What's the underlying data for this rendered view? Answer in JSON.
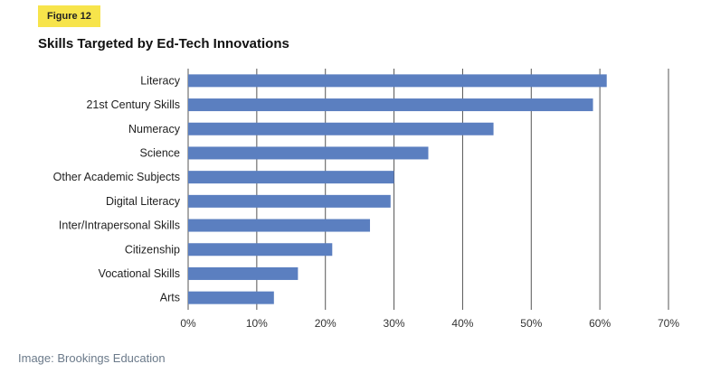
{
  "figure_label": "Figure 12",
  "source_caption": "Image: Brookings Education",
  "chart_data": {
    "type": "bar",
    "orientation": "horizontal",
    "title": "Skills Targeted by Ed-Tech Innovations",
    "categories": [
      "Literacy",
      "21st Century Skills",
      "Numeracy",
      "Science",
      "Other Academic Subjects",
      "Digital Literacy",
      "Inter/Intrapersonal Skills",
      "Citizenship",
      "Vocational Skills",
      "Arts"
    ],
    "values": [
      61,
      59,
      44.5,
      35,
      30,
      29.5,
      26.5,
      21,
      16,
      12.5
    ],
    "xlim": [
      0,
      70
    ],
    "xticks": [
      "0%",
      "10%",
      "20%",
      "30%",
      "40%",
      "50%",
      "60%",
      "70%"
    ],
    "xlabel": "",
    "ylabel": "",
    "grid": "vertical",
    "bar_color": "#5b7fc0",
    "grid_color": "#555555"
  }
}
